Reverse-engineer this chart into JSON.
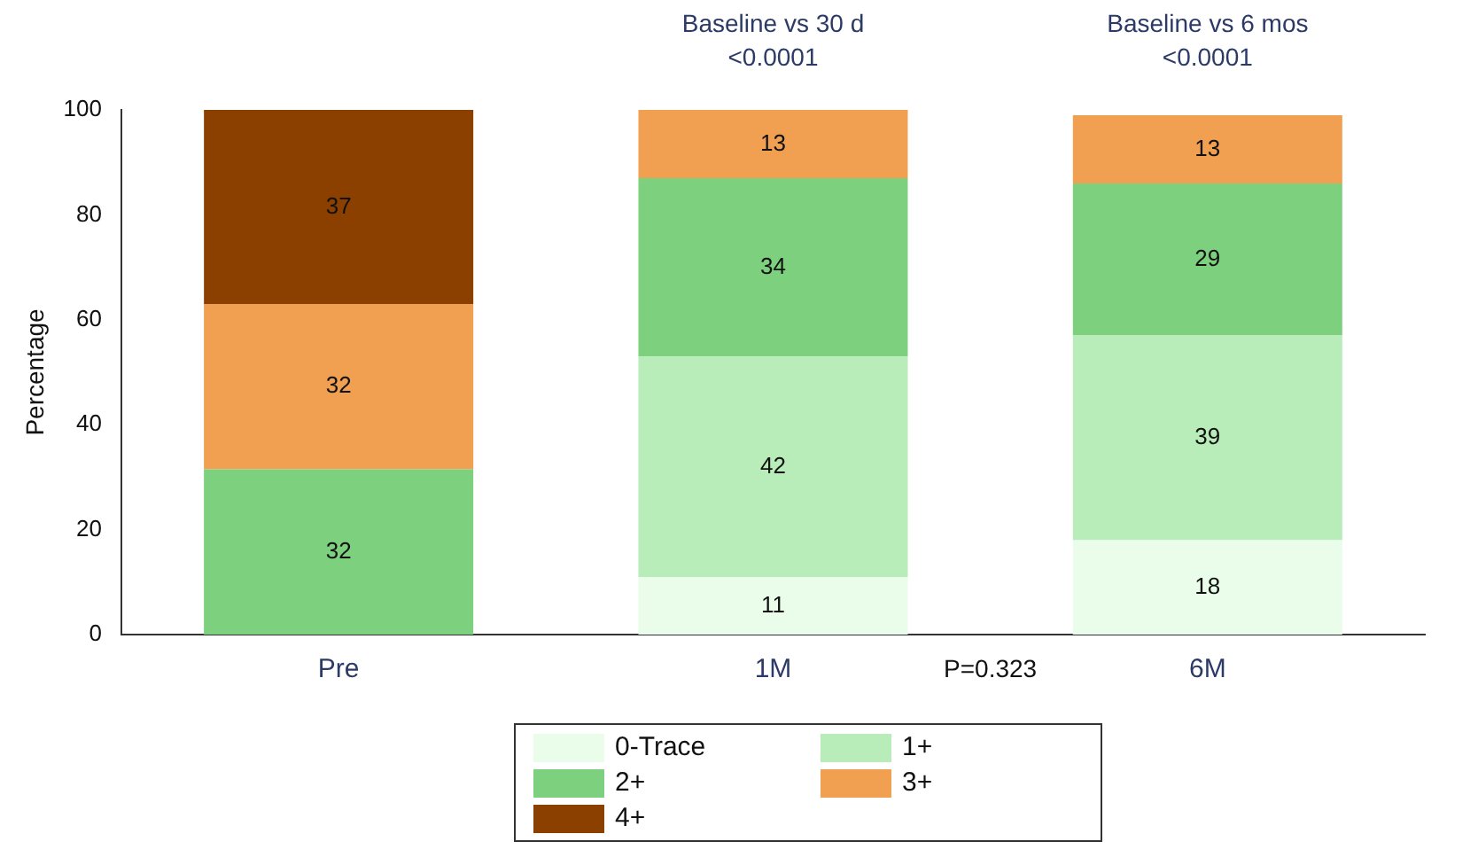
{
  "chart_data": {
    "type": "bar",
    "stacked": true,
    "ylabel": "Percentage",
    "categories": [
      "Pre",
      "1M",
      "6M"
    ],
    "ylim": [
      0,
      100
    ],
    "yticks": [
      0,
      20,
      40,
      60,
      80,
      100
    ],
    "grid": false,
    "legend": "bottom",
    "series": [
      {
        "name": "0-Trace",
        "color": "#eafcea",
        "values": [
          null,
          11,
          18
        ],
        "value_labels": [
          null,
          "11",
          "18"
        ]
      },
      {
        "name": "1+",
        "color": "#b8ecb8",
        "values": [
          null,
          42,
          39
        ],
        "value_labels": [
          null,
          "42",
          "39"
        ]
      },
      {
        "name": "2+",
        "color": "#7dd07d",
        "values": [
          31.5,
          34,
          29
        ],
        "value_labels": [
          "32",
          "34",
          "29"
        ]
      },
      {
        "name": "3+",
        "color": "#f0a050",
        "values": [
          31.5,
          13,
          13
        ],
        "value_labels": [
          "32",
          "13",
          "13"
        ]
      },
      {
        "name": "4+",
        "color": "#8b4000",
        "values": [
          37,
          null,
          null
        ],
        "value_labels": [
          "37",
          null,
          null
        ]
      }
    ],
    "annotations": [
      "Baseline vs 30 d\n<0.0001",
      "Baseline vs 6 mos\n<0.0001",
      "P=0.323"
    ]
  }
}
